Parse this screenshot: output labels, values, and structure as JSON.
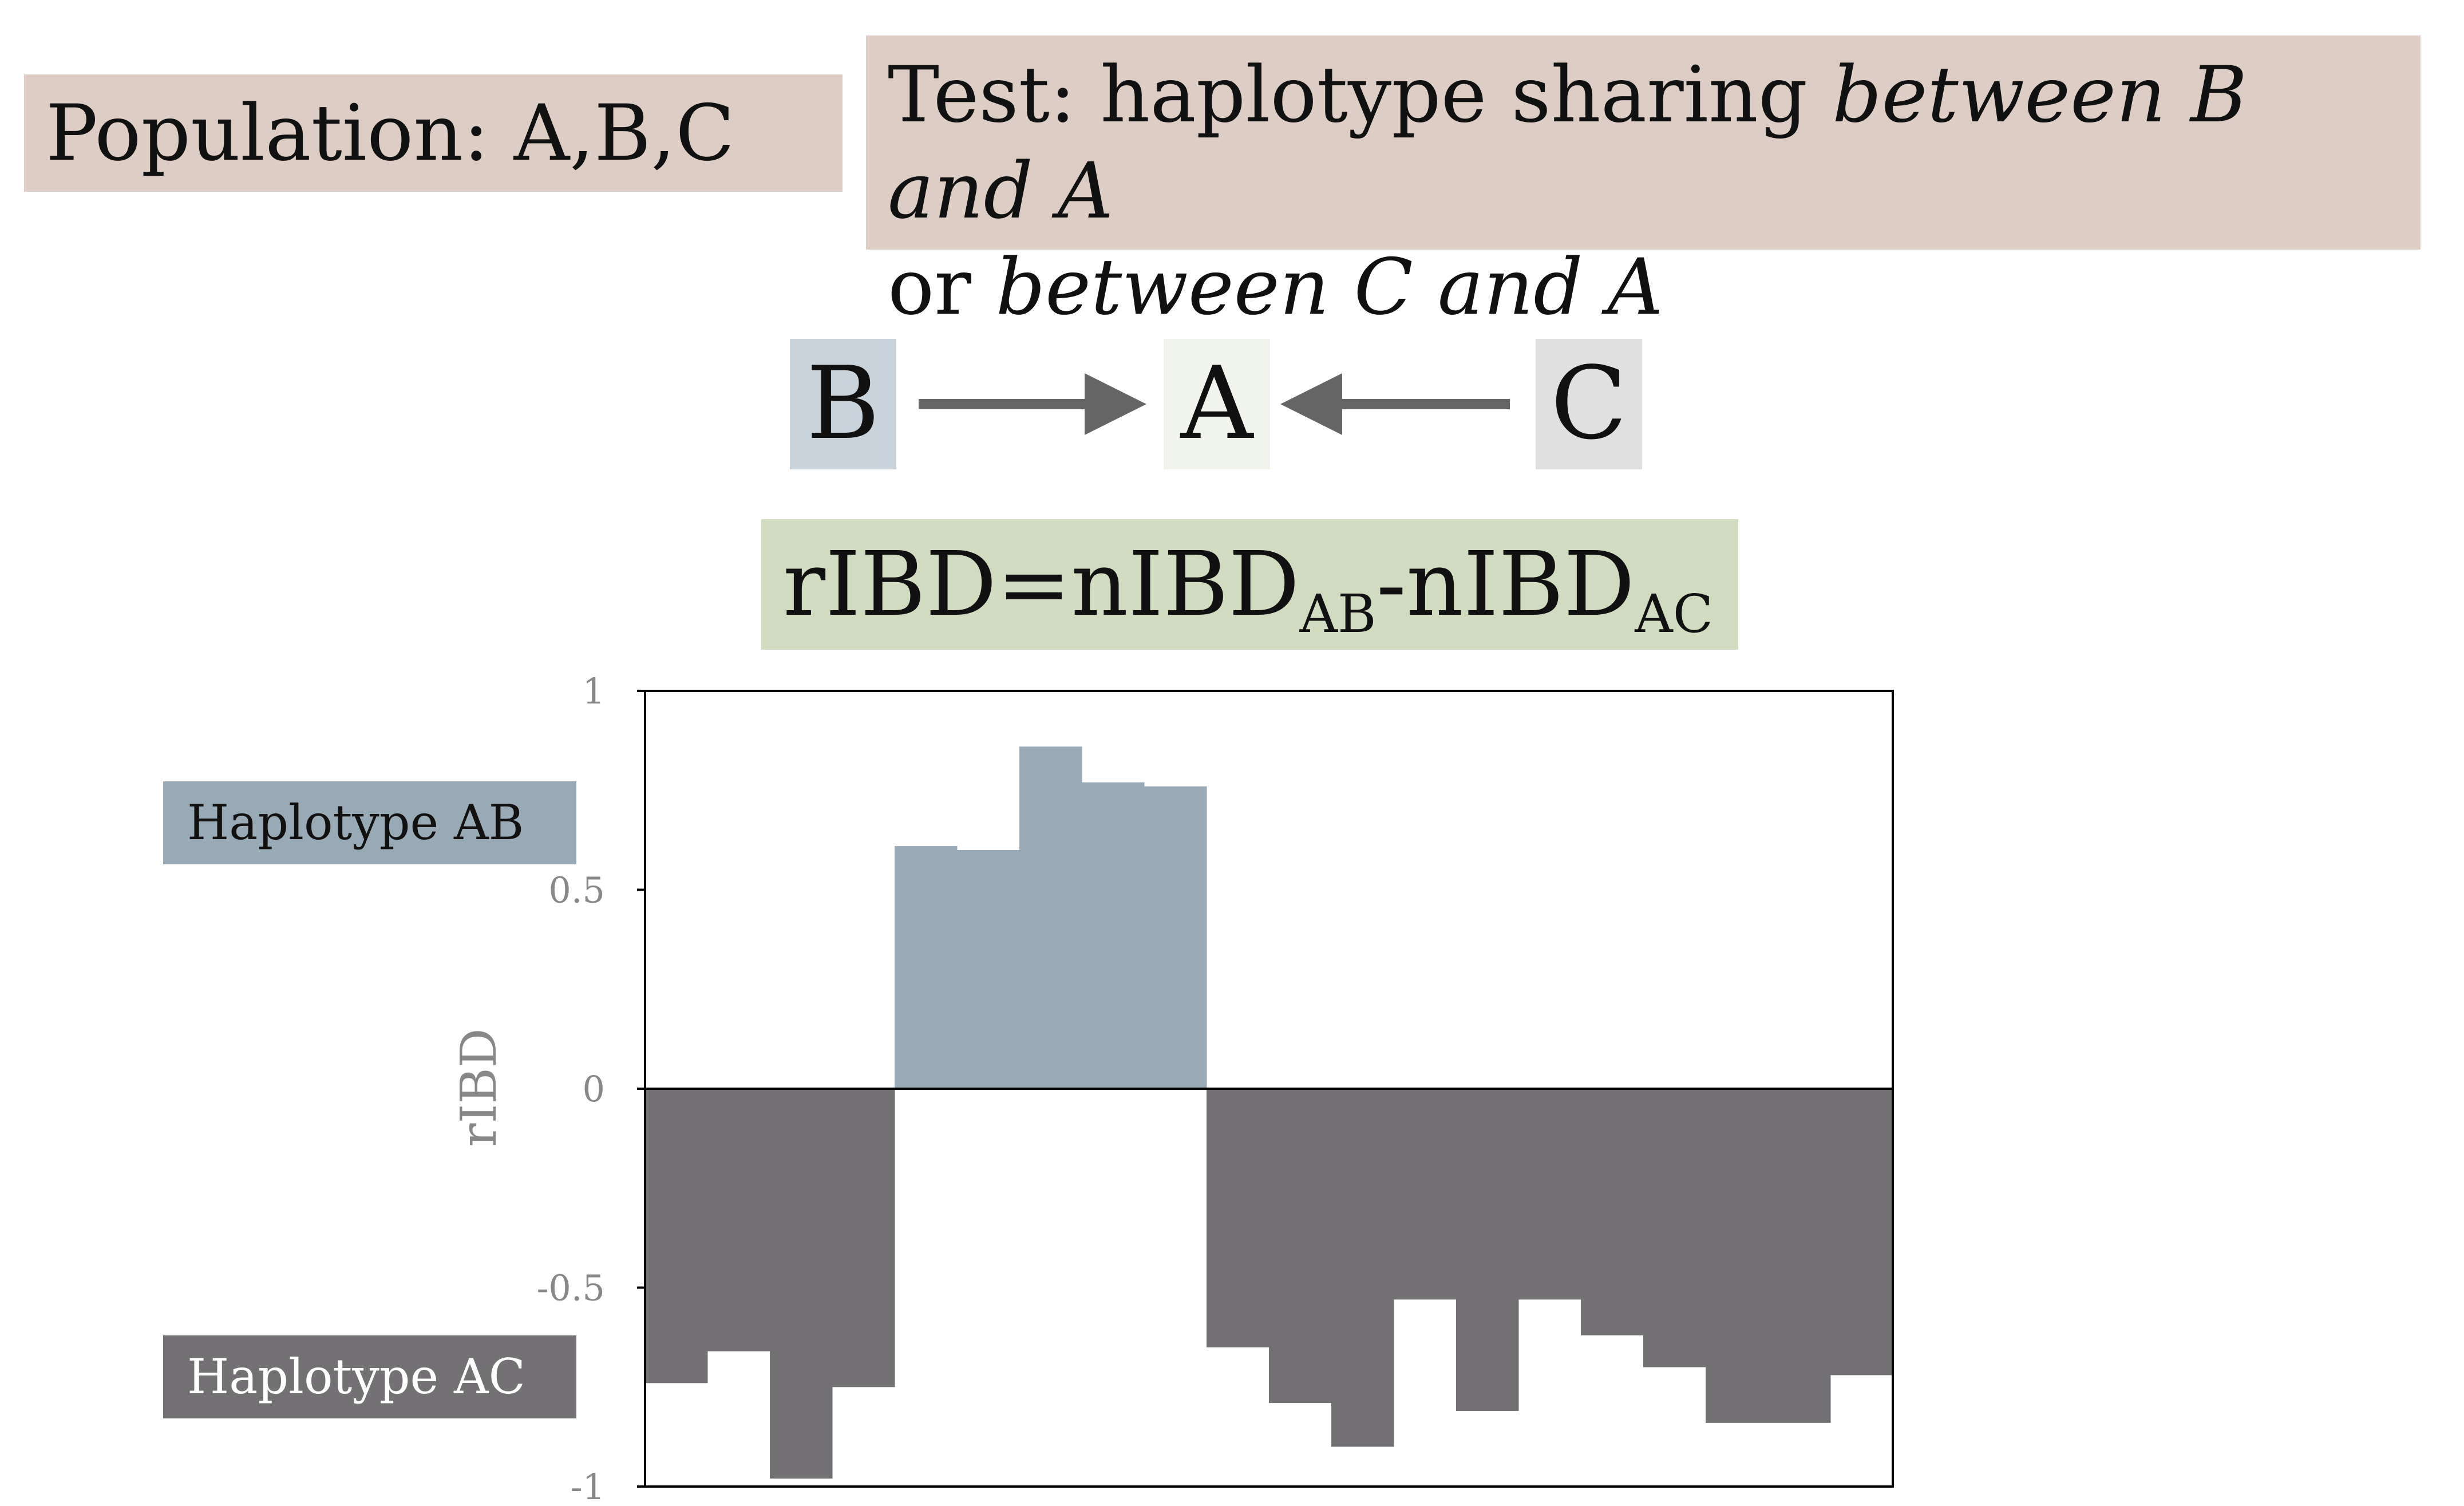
{
  "header": {
    "population": "Population: A,B,C",
    "test_prefix": "Test: haplotype sharing ",
    "test_between_ba": "between B and A",
    "test_or": "or ",
    "test_between_ca": "between C and A"
  },
  "diagram": {
    "node_b": "B",
    "node_a": "A",
    "node_c": "C"
  },
  "formula": {
    "lhs": "rIBD=nIBD",
    "sub_ab": "AB",
    "mid": "-nIBD",
    "sub_ac": "AC"
  },
  "legend": {
    "ab": "Haplotype AB",
    "ac": "Haplotype AC"
  },
  "colors": {
    "ab": "#99aab7",
    "ac": "#737174",
    "header_bg": "#ddcdc4",
    "formula_bg": "#d1dbbf"
  },
  "chart_data": {
    "type": "bar",
    "ylabel": "rIBD",
    "xlabel": "",
    "ylim": [
      -1,
      1
    ],
    "yticks": [
      {
        "value": 1,
        "label": "1"
      },
      {
        "value": 0.5,
        "label": "0.5"
      },
      {
        "value": 0,
        "label": "0"
      },
      {
        "value": -0.5,
        "label": "-0.5"
      },
      {
        "value": -1,
        "label": "-1"
      }
    ],
    "values": [
      -0.74,
      -0.66,
      -0.98,
      -0.75,
      0.61,
      0.6,
      0.86,
      0.77,
      0.76,
      -0.65,
      -0.79,
      -0.9,
      -0.53,
      -0.81,
      -0.53,
      -0.62,
      -0.7,
      -0.84,
      -0.84,
      -0.72
    ],
    "positive_series": "Haplotype AB",
    "negative_series": "Haplotype AC"
  }
}
